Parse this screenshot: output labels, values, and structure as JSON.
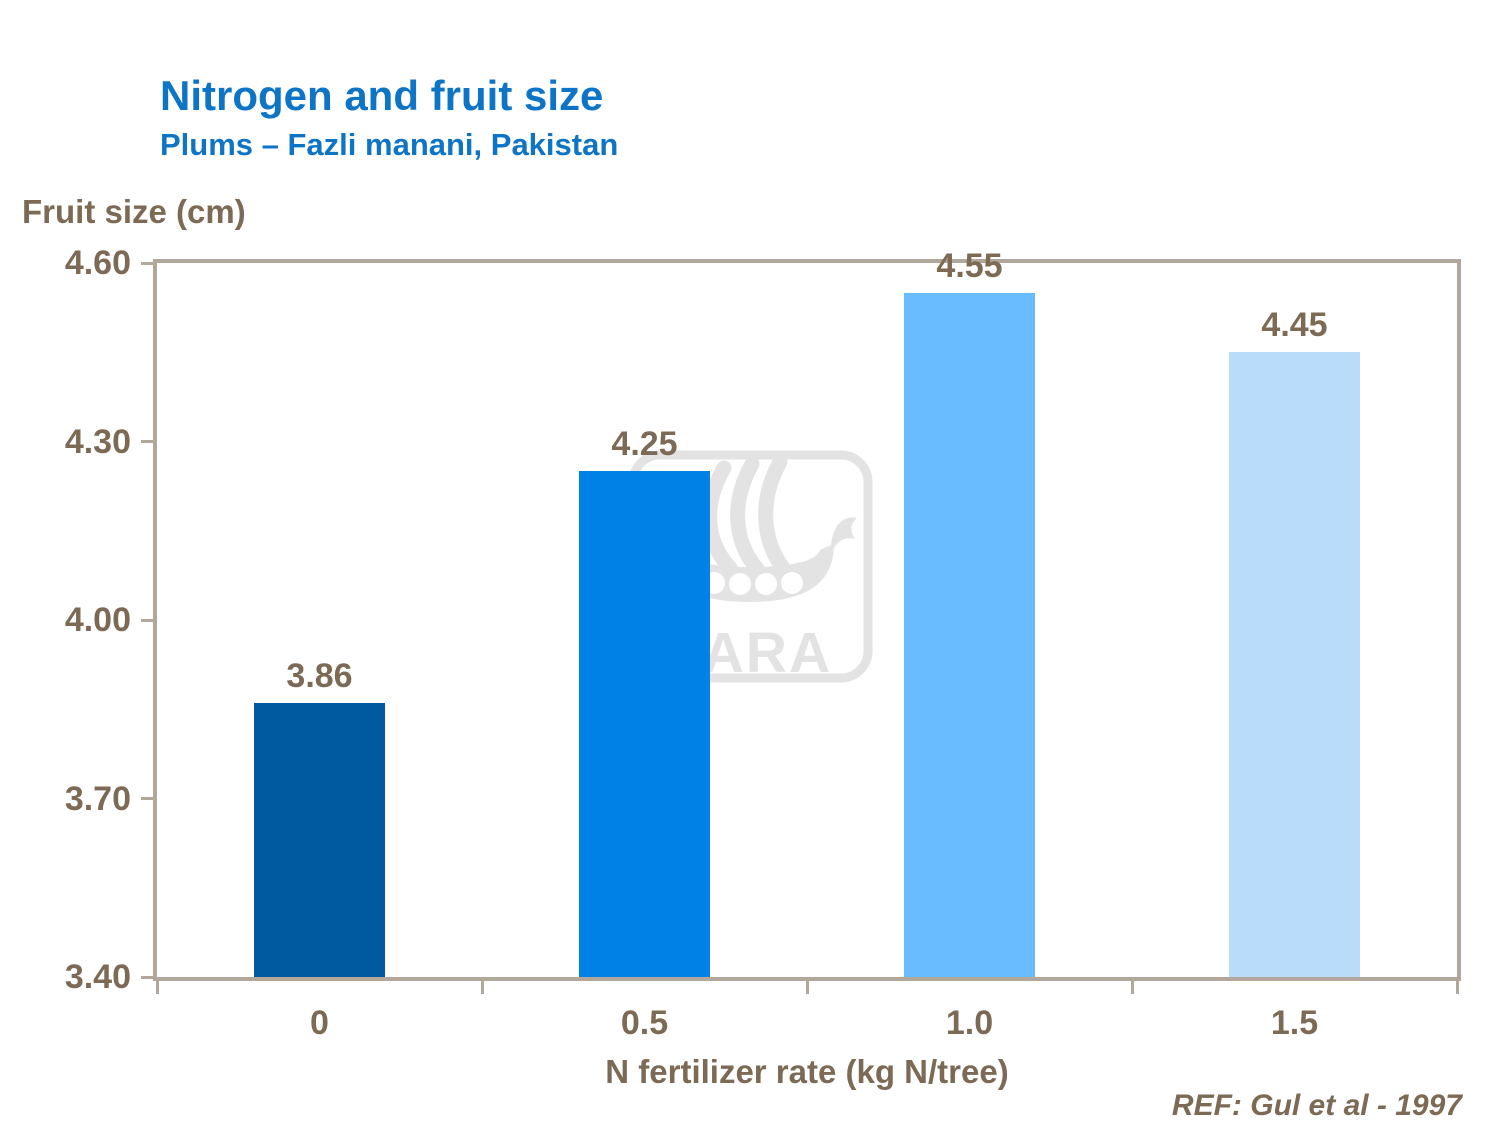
{
  "header": {
    "title": "Nitrogen and fruit size",
    "subtitle": "Plums – Fazli manani, Pakistan"
  },
  "footer": {
    "reference": "REF: Gul et al - 1997"
  },
  "watermark": {
    "name": "yara-logo",
    "wordmark": "YARA",
    "color": "#e3e3e3"
  },
  "chart_data": {
    "type": "bar",
    "title": "Nitrogen and fruit size",
    "subtitle": "Plums – Fazli manani, Pakistan",
    "categories": [
      "0",
      "0.5",
      "1.0",
      "1.5"
    ],
    "values": [
      3.86,
      4.25,
      4.55,
      4.45
    ],
    "value_labels": [
      "3.86",
      "4.25",
      "4.55",
      "4.45"
    ],
    "xlabel": "N fertilizer rate (kg N/tree)",
    "ylabel": "Fruit size (cm)",
    "ylim": [
      3.4,
      4.6
    ],
    "yticks": [
      "4.60",
      "4.30",
      "4.00",
      "3.70",
      "3.40"
    ],
    "ytick_step": 0.3,
    "grid": false,
    "legend_position": "none",
    "annotation": "REF: Gul et al - 1997",
    "bar_colors": [
      "#005a9f",
      "#0081e6",
      "#68bcff",
      "#badcfb"
    ],
    "axis_color": "#b2a79b",
    "label_color": "#7c6a55",
    "title_color": "#0e74c6"
  }
}
